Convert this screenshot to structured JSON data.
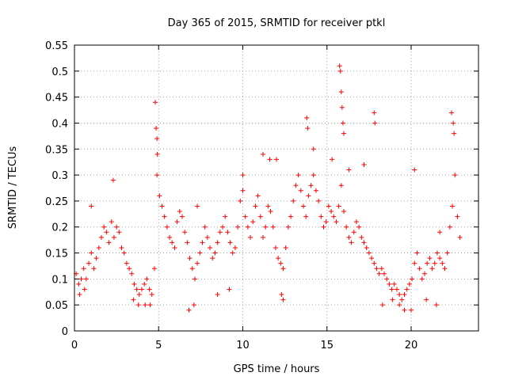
{
  "chart_data": {
    "type": "scatter",
    "title": "Day 365 of 2015, SRMTID for receiver ptkl",
    "xlabel": "GPS time / hours",
    "ylabel": "SRMTID / TECUs",
    "xlim": [
      0,
      24
    ],
    "ylim": [
      0,
      0.55
    ],
    "x_ticks": [
      0,
      5,
      10,
      15,
      20
    ],
    "y_ticks": [
      0,
      0.05,
      0.1,
      0.15,
      0.2,
      0.25,
      0.3,
      0.35,
      0.4,
      0.45,
      0.5,
      0.55
    ],
    "x_tick_labels": [
      "0",
      "5",
      "10",
      "15",
      "20"
    ],
    "y_tick_labels": [
      "0",
      "0.05",
      "0.1",
      "0.15",
      "0.2",
      "0.25",
      "0.3",
      "0.35",
      "0.4",
      "0.45",
      "0.5",
      "0.55"
    ],
    "grid": true,
    "marker": "+",
    "series_color": "#ff0000",
    "series": [
      {
        "name": "SRMTID",
        "x": [
          0.1,
          0.25,
          0.4,
          0.55,
          0.7,
          0.85,
          1.0,
          1.15,
          1.3,
          1.45,
          1.6,
          1.75,
          1.9,
          2.05,
          2.2,
          2.35,
          2.5,
          2.65,
          2.8,
          2.95,
          3.1,
          3.25,
          3.4,
          3.55,
          3.7,
          3.85,
          4.0,
          4.15,
          4.3,
          4.45,
          4.6,
          4.75,
          4.9,
          5.05,
          5.2,
          5.35,
          5.5,
          5.65,
          5.8,
          5.95,
          6.1,
          6.25,
          6.4,
          6.55,
          6.7,
          6.85,
          7.0,
          7.15,
          7.3,
          7.45,
          7.6,
          7.75,
          7.9,
          8.05,
          8.2,
          8.35,
          8.5,
          8.65,
          8.8,
          8.95,
          9.1,
          9.25,
          9.4,
          9.55,
          9.7,
          9.85,
          10.0,
          10.15,
          10.3,
          10.45,
          10.6,
          10.75,
          10.9,
          11.05,
          11.2,
          11.35,
          11.5,
          11.65,
          11.8,
          11.95,
          12.1,
          12.25,
          12.4,
          12.55,
          12.7,
          12.85,
          13.0,
          13.15,
          13.3,
          13.45,
          13.6,
          13.75,
          13.9,
          14.05,
          14.2,
          14.35,
          14.5,
          14.65,
          14.8,
          14.95,
          15.1,
          15.25,
          15.4,
          15.55,
          15.7,
          15.85,
          16.0,
          16.15,
          16.3,
          16.45,
          16.6,
          16.75,
          16.9,
          17.05,
          17.2,
          17.35,
          17.5,
          17.65,
          17.8,
          17.95,
          18.1,
          18.25,
          18.4,
          18.55,
          18.7,
          18.85,
          19.0,
          19.15,
          19.3,
          19.45,
          19.6,
          19.75,
          19.9,
          20.05,
          20.2,
          20.35,
          20.5,
          20.65,
          20.8,
          20.95,
          21.1,
          21.25,
          21.4,
          21.55,
          21.7,
          21.85,
          22.0,
          22.15,
          22.3,
          22.45,
          22.6,
          22.75,
          22.9,
          4.8,
          4.85,
          4.9,
          4.92,
          12.0,
          13.8,
          13.85,
          15.75,
          15.8,
          15.85,
          15.9,
          15.95,
          16.0,
          17.8,
          17.85,
          20.2,
          22.4,
          22.5,
          22.55,
          0.3,
          0.6,
          1.0,
          2.3,
          3.5,
          3.8,
          4.2,
          4.5,
          6.8,
          7.1,
          7.3,
          8.5,
          9.2,
          10.0,
          11.2,
          11.6,
          12.3,
          12.4,
          14.2,
          15.3,
          16.3,
          17.2,
          18.3,
          18.9,
          19.3,
          19.6,
          20.0,
          20.9,
          21.5,
          21.7
        ],
        "y": [
          0.11,
          0.09,
          0.1,
          0.12,
          0.1,
          0.13,
          0.15,
          0.12,
          0.14,
          0.16,
          0.18,
          0.2,
          0.19,
          0.17,
          0.21,
          0.18,
          0.2,
          0.19,
          0.16,
          0.15,
          0.13,
          0.12,
          0.11,
          0.09,
          0.08,
          0.07,
          0.08,
          0.09,
          0.1,
          0.08,
          0.07,
          0.12,
          0.3,
          0.26,
          0.24,
          0.22,
          0.2,
          0.18,
          0.17,
          0.16,
          0.21,
          0.23,
          0.22,
          0.19,
          0.17,
          0.14,
          0.12,
          0.1,
          0.13,
          0.15,
          0.17,
          0.2,
          0.18,
          0.16,
          0.14,
          0.15,
          0.17,
          0.19,
          0.2,
          0.22,
          0.19,
          0.17,
          0.15,
          0.16,
          0.2,
          0.25,
          0.27,
          0.22,
          0.2,
          0.18,
          0.21,
          0.24,
          0.26,
          0.22,
          0.18,
          0.2,
          0.24,
          0.23,
          0.2,
          0.16,
          0.14,
          0.13,
          0.12,
          0.16,
          0.2,
          0.22,
          0.25,
          0.28,
          0.3,
          0.27,
          0.24,
          0.22,
          0.26,
          0.28,
          0.3,
          0.27,
          0.25,
          0.22,
          0.2,
          0.21,
          0.24,
          0.23,
          0.22,
          0.21,
          0.24,
          0.28,
          0.23,
          0.2,
          0.18,
          0.17,
          0.19,
          0.21,
          0.2,
          0.18,
          0.17,
          0.16,
          0.15,
          0.14,
          0.13,
          0.12,
          0.11,
          0.12,
          0.11,
          0.1,
          0.09,
          0.08,
          0.09,
          0.08,
          0.07,
          0.06,
          0.07,
          0.08,
          0.09,
          0.1,
          0.13,
          0.15,
          0.12,
          0.1,
          0.11,
          0.13,
          0.14,
          0.12,
          0.13,
          0.15,
          0.14,
          0.13,
          0.12,
          0.15,
          0.2,
          0.24,
          0.3,
          0.22,
          0.18,
          0.44,
          0.39,
          0.37,
          0.34,
          0.33,
          0.41,
          0.39,
          0.51,
          0.5,
          0.46,
          0.43,
          0.4,
          0.38,
          0.42,
          0.4,
          0.31,
          0.42,
          0.4,
          0.38,
          0.07,
          0.08,
          0.24,
          0.29,
          0.06,
          0.05,
          0.05,
          0.05,
          0.04,
          0.05,
          0.24,
          0.07,
          0.08,
          0.3,
          0.34,
          0.33,
          0.07,
          0.06,
          0.35,
          0.33,
          0.31,
          0.32,
          0.05,
          0.06,
          0.05,
          0.04,
          0.04,
          0.06,
          0.05,
          0.19
        ]
      }
    ]
  }
}
